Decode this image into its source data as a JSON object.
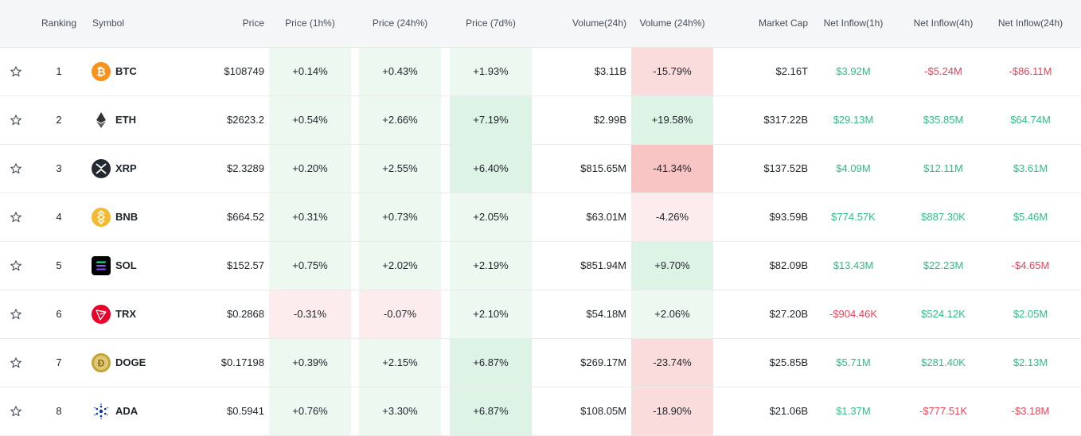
{
  "columns": {
    "ranking": "Ranking",
    "symbol": "Symbol",
    "price": "Price",
    "price_1h": "Price (1h%)",
    "price_24h": "Price (24h%)",
    "price_7d": "Price (7d%)",
    "volume_24h": "Volume(24h)",
    "volume_24h_pct": "Volume (24h%)",
    "market_cap": "Market Cap",
    "net_inflow_1h": "Net Inflow(1h)",
    "net_inflow_4h": "Net Inflow(4h)",
    "net_inflow_24h": "Net Inflow(24h)"
  },
  "colors": {
    "positive_text": "#2ebd85",
    "negative_text": "#e94359",
    "pos_bg_light": "#edf8f1",
    "pos_bg_mid": "#ddf3e6",
    "neg_bg_light": "#fdeced",
    "neg_bg_mid": "#fadcdd",
    "neg_bg_strong": "#f8c4c4"
  },
  "rows": [
    {
      "rank": "1",
      "symbol": "BTC",
      "icon": "bitcoin-icon",
      "price": "$108749",
      "p1h": "+0.14%",
      "p24h": "+0.43%",
      "p7d": "+1.93%",
      "vol": "$3.11B",
      "volpct": "-15.79%",
      "mcap": "$2.16T",
      "in1h": "$3.92M",
      "in4h": "-$5.24M",
      "in24h": "-$86.11M"
    },
    {
      "rank": "2",
      "symbol": "ETH",
      "icon": "ethereum-icon",
      "price": "$2623.2",
      "p1h": "+0.54%",
      "p24h": "+2.66%",
      "p7d": "+7.19%",
      "vol": "$2.99B",
      "volpct": "+19.58%",
      "mcap": "$317.22B",
      "in1h": "$29.13M",
      "in4h": "$35.85M",
      "in24h": "$64.74M"
    },
    {
      "rank": "3",
      "symbol": "XRP",
      "icon": "xrp-icon",
      "price": "$2.3289",
      "p1h": "+0.20%",
      "p24h": "+2.55%",
      "p7d": "+6.40%",
      "vol": "$815.65M",
      "volpct": "-41.34%",
      "mcap": "$137.52B",
      "in1h": "$4.09M",
      "in4h": "$12.11M",
      "in24h": "$3.61M"
    },
    {
      "rank": "4",
      "symbol": "BNB",
      "icon": "bnb-icon",
      "price": "$664.52",
      "p1h": "+0.31%",
      "p24h": "+0.73%",
      "p7d": "+2.05%",
      "vol": "$63.01M",
      "volpct": "-4.26%",
      "mcap": "$93.59B",
      "in1h": "$774.57K",
      "in4h": "$887.30K",
      "in24h": "$5.46M"
    },
    {
      "rank": "5",
      "symbol": "SOL",
      "icon": "solana-icon",
      "price": "$152.57",
      "p1h": "+0.75%",
      "p24h": "+2.02%",
      "p7d": "+2.19%",
      "vol": "$851.94M",
      "volpct": "+9.70%",
      "mcap": "$82.09B",
      "in1h": "$13.43M",
      "in4h": "$22.23M",
      "in24h": "-$4.65M"
    },
    {
      "rank": "6",
      "symbol": "TRX",
      "icon": "tron-icon",
      "price": "$0.2868",
      "p1h": "-0.31%",
      "p24h": "-0.07%",
      "p7d": "+2.10%",
      "vol": "$54.18M",
      "volpct": "+2.06%",
      "mcap": "$27.20B",
      "in1h": "-$904.46K",
      "in4h": "$524.12K",
      "in24h": "$2.05M"
    },
    {
      "rank": "7",
      "symbol": "DOGE",
      "icon": "dogecoin-icon",
      "price": "$0.17198",
      "p1h": "+0.39%",
      "p24h": "+2.15%",
      "p7d": "+6.87%",
      "vol": "$269.17M",
      "volpct": "-23.74%",
      "mcap": "$25.85B",
      "in1h": "$5.71M",
      "in4h": "$281.40K",
      "in24h": "$2.13M"
    },
    {
      "rank": "8",
      "symbol": "ADA",
      "icon": "cardano-icon",
      "price": "$0.5941",
      "p1h": "+0.76%",
      "p24h": "+3.30%",
      "p7d": "+6.87%",
      "vol": "$108.05M",
      "volpct": "-18.90%",
      "mcap": "$21.06B",
      "in1h": "$1.37M",
      "in4h": "-$777.51K",
      "in24h": "-$3.18M"
    }
  ]
}
